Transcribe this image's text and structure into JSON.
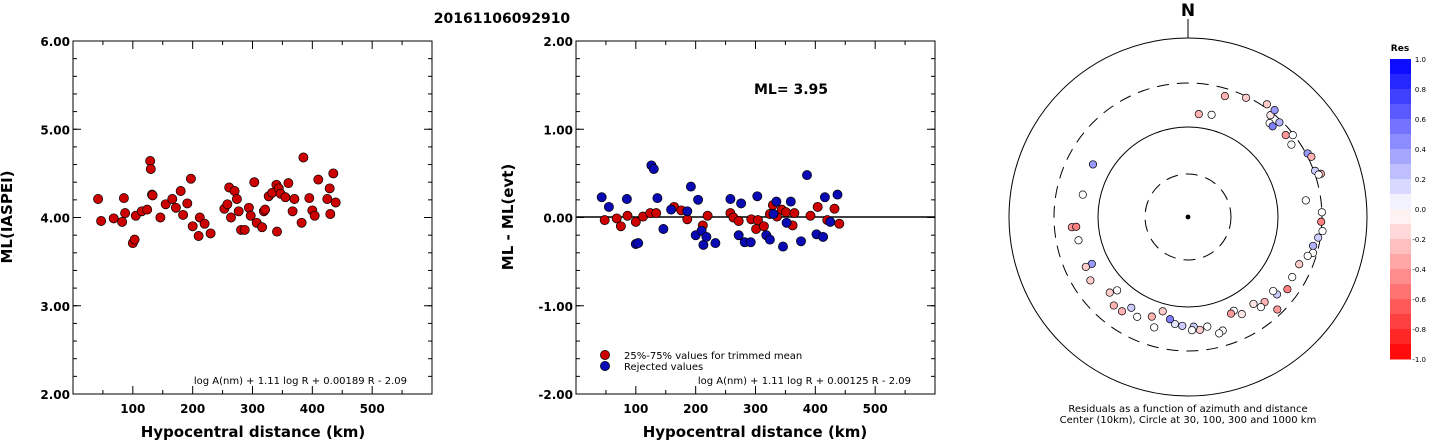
{
  "title": "20161106092910",
  "colors": {
    "red": "#cc0000",
    "blue": "#0a0ab4",
    "axis": "#000000"
  },
  "chart_data": [
    {
      "type": "scatter",
      "xlabel": "Hypocentral distance (km)",
      "ylabel": "ML(IASPEI)",
      "xlim": [
        0,
        600
      ],
      "ylim": [
        2.0,
        6.0
      ],
      "xticks": [
        "100",
        "200",
        "300",
        "400",
        "500"
      ],
      "yticks": [
        "2.00",
        "3.00",
        "4.00",
        "5.00",
        "6.00"
      ],
      "formula": "log A(nm) + 1.11 log R + 0.00189 R - 2.09",
      "series": [
        {
          "color": "red",
          "points": [
            [
              42,
              4.21
            ],
            [
              47,
              3.96
            ],
            [
              68,
              3.99
            ],
            [
              82,
              3.95
            ],
            [
              85,
              4.22
            ],
            [
              87,
              4.05
            ],
            [
              100,
              3.71
            ],
            [
              103,
              3.75
            ],
            [
              105,
              4.02
            ],
            [
              115,
              4.07
            ],
            [
              124,
              4.09
            ],
            [
              129,
              4.64
            ],
            [
              130,
              4.55
            ],
            [
              132,
              4.26
            ],
            [
              133,
              4.25
            ],
            [
              146,
              4.0
            ],
            [
              155,
              4.15
            ],
            [
              166,
              4.21
            ],
            [
              172,
              4.11
            ],
            [
              180,
              4.3
            ],
            [
              184,
              4.03
            ],
            [
              191,
              4.16
            ],
            [
              197,
              4.44
            ],
            [
              200,
              3.9
            ],
            [
              210,
              3.79
            ],
            [
              212,
              4.0
            ],
            [
              220,
              3.93
            ],
            [
              230,
              3.82
            ],
            [
              253,
              4.1
            ],
            [
              258,
              4.15
            ],
            [
              261,
              4.34
            ],
            [
              264,
              4.0
            ],
            [
              270,
              4.3
            ],
            [
              274,
              4.21
            ],
            [
              277,
              4.07
            ],
            [
              281,
              3.86
            ],
            [
              287,
              3.86
            ],
            [
              294,
              4.11
            ],
            [
              297,
              4.02
            ],
            [
              303,
              4.4
            ],
            [
              307,
              3.94
            ],
            [
              316,
              3.89
            ],
            [
              319,
              4.07
            ],
            [
              321,
              4.09
            ],
            [
              327,
              4.24
            ],
            [
              333,
              4.28
            ],
            [
              340,
              4.37
            ],
            [
              341,
              3.84
            ],
            [
              344,
              4.33
            ],
            [
              347,
              4.27
            ],
            [
              355,
              4.23
            ],
            [
              360,
              4.39
            ],
            [
              367,
              4.07
            ],
            [
              370,
              4.21
            ],
            [
              382,
              3.94
            ],
            [
              385,
              4.68
            ],
            [
              395,
              4.22
            ],
            [
              400,
              4.08
            ],
            [
              404,
              4.02
            ],
            [
              410,
              4.43
            ],
            [
              425,
              4.21
            ],
            [
              429,
              4.33
            ],
            [
              430,
              4.04
            ],
            [
              435,
              4.5
            ],
            [
              439,
              4.17
            ]
          ]
        }
      ]
    },
    {
      "type": "scatter",
      "xlabel": "Hypocentral distance (km)",
      "ylabel": "ML - ML(evt)",
      "xlim": [
        0,
        600
      ],
      "ylim": [
        -2.0,
        2.0
      ],
      "xticks": [
        "100",
        "200",
        "300",
        "400",
        "500"
      ],
      "yticks": [
        "-2.00",
        "-1.00",
        "0.00",
        "1.00",
        "2.00"
      ],
      "annotation": "ML= 3.95",
      "formula": "log A(nm) + 1.11 log R + 0.00125 R - 2.09",
      "series": [
        {
          "name": "25%-75% values for trimmed mean",
          "color": "red",
          "points": [
            [
              48,
              -0.03
            ],
            [
              68,
              -0.01
            ],
            [
              75,
              -0.1
            ],
            [
              86,
              0.02
            ],
            [
              100,
              -0.05
            ],
            [
              112,
              0.01
            ],
            [
              124,
              0.05
            ],
            [
              134,
              0.05
            ],
            [
              164,
              0.12
            ],
            [
              176,
              0.08
            ],
            [
              186,
              -0.02
            ],
            [
              212,
              -0.09
            ],
            [
              220,
              0.02
            ],
            [
              258,
              0.05
            ],
            [
              263,
              0.0
            ],
            [
              272,
              -0.04
            ],
            [
              293,
              -0.02
            ],
            [
              301,
              -0.13
            ],
            [
              304,
              -0.03
            ],
            [
              314,
              -0.1
            ],
            [
              324,
              0.04
            ],
            [
              329,
              0.14
            ],
            [
              336,
              0.01
            ],
            [
              344,
              0.09
            ],
            [
              351,
              0.06
            ],
            [
              362,
              -0.09
            ],
            [
              365,
              0.05
            ],
            [
              392,
              0.02
            ],
            [
              404,
              0.12
            ],
            [
              420,
              -0.03
            ],
            [
              432,
              0.1
            ],
            [
              440,
              -0.07
            ]
          ]
        },
        {
          "name": "Rejected values",
          "color": "blue",
          "points": [
            [
              43,
              0.23
            ],
            [
              55,
              0.12
            ],
            [
              85,
              0.21
            ],
            [
              100,
              -0.3
            ],
            [
              104,
              -0.29
            ],
            [
              126,
              0.59
            ],
            [
              130,
              0.55
            ],
            [
              136,
              0.22
            ],
            [
              146,
              -0.13
            ],
            [
              159,
              0.09
            ],
            [
              186,
              0.07
            ],
            [
              192,
              0.35
            ],
            [
              200,
              -0.2
            ],
            [
              204,
              0.2
            ],
            [
              210,
              -0.15
            ],
            [
              213,
              -0.31
            ],
            [
              218,
              -0.22
            ],
            [
              233,
              -0.29
            ],
            [
              258,
              0.21
            ],
            [
              272,
              -0.2
            ],
            [
              276,
              0.16
            ],
            [
              282,
              -0.28
            ],
            [
              292,
              -0.28
            ],
            [
              303,
              0.24
            ],
            [
              318,
              -0.2
            ],
            [
              324,
              -0.25
            ],
            [
              330,
              0.04
            ],
            [
              335,
              0.18
            ],
            [
              346,
              -0.33
            ],
            [
              352,
              -0.06
            ],
            [
              359,
              0.18
            ],
            [
              376,
              -0.27
            ],
            [
              386,
              0.48
            ],
            [
              402,
              -0.19
            ],
            [
              413,
              -0.22
            ],
            [
              416,
              0.23
            ],
            [
              425,
              -0.05
            ],
            [
              437,
              0.26
            ]
          ]
        }
      ]
    },
    {
      "type": "scatter",
      "subtype": "polar residual map",
      "north_label": "N",
      "caption": [
        "Residuals as a function of azimuth and distance",
        "Center (10km), Circle at 30, 100, 300 and 1000 km"
      ],
      "colorbar": {
        "title": "Res",
        "ticks": [
          "1.0",
          "0.8",
          "0.6",
          "0.4",
          "0.2",
          "0.0",
          "-0.2",
          "-0.4",
          "-0.6",
          "-0.8",
          "-1.0"
        ],
        "min": -1.0,
        "max": 1.0
      },
      "rings_km": [
        30,
        100,
        300,
        1000
      ],
      "points": [
        [
          6,
          140,
          -0.3
        ],
        [
          13,
          145,
          0.0
        ],
        [
          17,
          248,
          -0.3
        ],
        [
          26,
          290,
          -0.2
        ],
        [
          35,
          330,
          -0.2
        ],
        [
          39,
          278,
          -0.1
        ],
        [
          39,
          330,
          0.4
        ],
        [
          41,
          236,
          0.0
        ],
        [
          43,
          234,
          0.5
        ],
        [
          44,
          282,
          0.3
        ],
        [
          50,
          255,
          -0.4
        ],
        [
          52,
          293,
          0.0
        ],
        [
          55,
          247,
          0.0
        ],
        [
          62,
          312,
          0.4
        ],
        [
          64,
          328,
          -0.3
        ],
        [
          70,
          310,
          0.2
        ],
        [
          72,
          350,
          -0.3
        ],
        [
          72,
          328,
          0.0
        ],
        [
          82,
          206,
          0.0
        ],
        [
          88,
          300,
          0.0
        ],
        [
          92,
          295,
          -0.5
        ],
        [
          96,
          310,
          0.0
        ],
        [
          99,
          284,
          0.2
        ],
        [
          103,
          261,
          0.3
        ],
        [
          106,
          272,
          0.0
        ],
        [
          108,
          245,
          0.0
        ],
        [
          113,
          216,
          -0.2
        ],
        [
          120,
          213,
          0.0
        ],
        [
          126,
          227,
          -0.5
        ],
        [
          131,
          201,
          0.2
        ],
        [
          131,
          177,
          0.0
        ],
        [
          136,
          262,
          -0.4
        ],
        [
          138,
          184,
          -0.3
        ],
        [
          141,
          191,
          0.0
        ],
        [
          143,
          160,
          -0.1
        ],
        [
          151,
          169,
          -0.1
        ],
        [
          154,
          143,
          0.0
        ],
        [
          156,
          148,
          -0.4
        ],
        [
          163,
          205,
          0.0
        ],
        [
          165,
          214,
          0.0
        ],
        [
          170,
          170,
          0.0
        ],
        [
          174,
          180,
          -0.2
        ],
        [
          177,
          164,
          0.2
        ],
        [
          178,
          179,
          0.0
        ],
        [
          183,
          161,
          0.2
        ],
        [
          187,
          156,
          0.1
        ],
        [
          190,
          141,
          0.5
        ],
        [
          195,
          121,
          -0.2
        ],
        [
          197,
          189,
          0.0
        ],
        [
          200,
          149,
          -0.3
        ],
        [
          207,
          173,
          0.0
        ],
        [
          212,
          153,
          0.2
        ],
        [
          215,
          187,
          -0.3
        ],
        [
          220,
          189,
          -0.3
        ],
        [
          224,
          135,
          0.0
        ],
        [
          226,
          160,
          -0.2
        ],
        [
          237,
          193,
          -0.2
        ],
        [
          244,
          153,
          0.4
        ],
        [
          244,
          181,
          -0.2
        ],
        [
          258,
          173,
          0.0
        ],
        [
          265,
          194,
          -0.4
        ],
        [
          265,
          174,
          -0.5
        ],
        [
          282,
          155,
          0.0
        ],
        [
          299,
          159,
          0.4
        ]
      ]
    }
  ]
}
